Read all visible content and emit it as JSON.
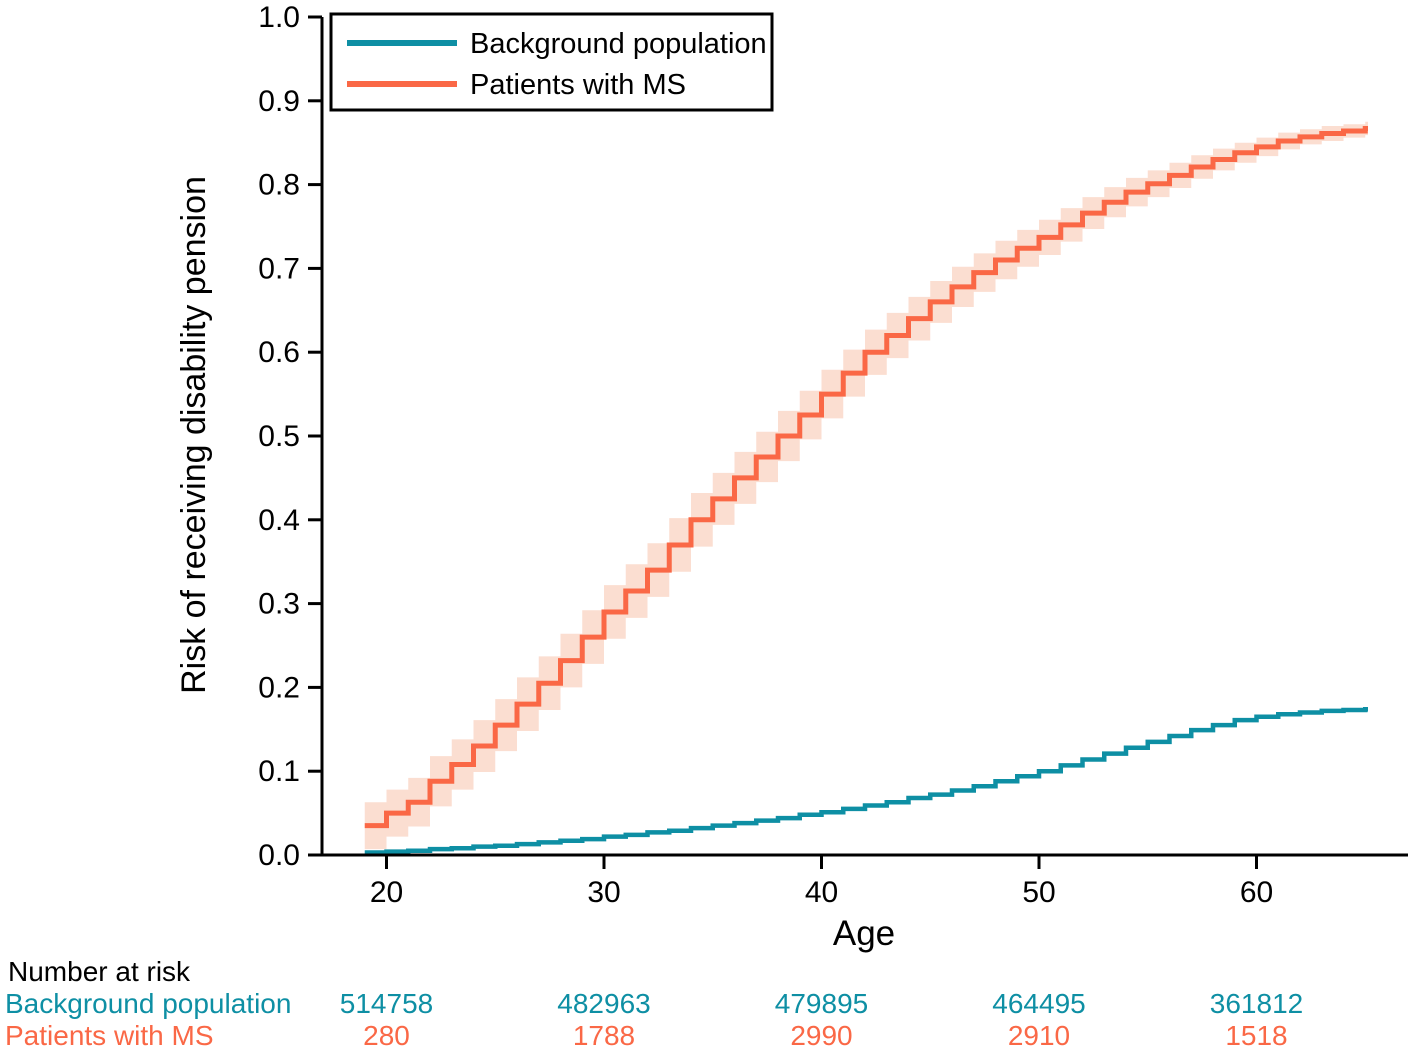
{
  "figure": {
    "background": "#ffffff"
  },
  "colors": {
    "background_population": "#0E8FA4",
    "patients_ms": "#FA6846",
    "ms_ci_band": "#FBDED1",
    "axis": "#000000"
  },
  "legend": {
    "items": [
      {
        "label": "Background population",
        "color": "#0E8FA4"
      },
      {
        "label": "Patients with MS",
        "color": "#FA6846"
      }
    ]
  },
  "axes": {
    "x": {
      "label": "Age",
      "ticks": [
        "20",
        "30",
        "40",
        "50",
        "60"
      ],
      "tick_values": [
        20,
        30,
        40,
        50,
        60
      ]
    },
    "y": {
      "label": "Risk of receiving disability pension",
      "ticks": [
        "0.0",
        "0.1",
        "0.2",
        "0.3",
        "0.4",
        "0.5",
        "0.6",
        "0.7",
        "0.8",
        "0.9",
        "1.0"
      ],
      "tick_values": [
        0.0,
        0.1,
        0.2,
        0.3,
        0.4,
        0.5,
        0.6,
        0.7,
        0.8,
        0.9,
        1.0
      ]
    }
  },
  "risk_table": {
    "title": "Number at risk",
    "ages": [
      20,
      30,
      40,
      50,
      60
    ],
    "rows": [
      {
        "label": "Background population",
        "color": "#0E8FA4",
        "values": [
          "514758",
          "482963",
          "479895",
          "464495",
          "361812"
        ]
      },
      {
        "label": "Patients with MS",
        "color": "#FA6846",
        "values": [
          "280",
          "1788",
          "2990",
          "2910",
          "1518"
        ]
      }
    ]
  },
  "chart_data": {
    "type": "line",
    "subtype": "step-cumulative-incidence",
    "title": "",
    "xlabel": "Age",
    "ylabel": "Risk of receiving disability pension",
    "xlim": [
      17,
      67
    ],
    "ylim": [
      0,
      1
    ],
    "x_ticks": [
      20,
      30,
      40,
      50,
      60
    ],
    "y_ticks": [
      0.0,
      0.1,
      0.2,
      0.3,
      0.4,
      0.5,
      0.6,
      0.7,
      0.8,
      0.9,
      1.0
    ],
    "grid": false,
    "legend_position": "top-left-inside",
    "series": [
      {
        "name": "Background population",
        "color": "#0E8FA4",
        "x": [
          19,
          20,
          21,
          22,
          23,
          24,
          25,
          26,
          27,
          28,
          29,
          30,
          31,
          32,
          33,
          34,
          35,
          36,
          37,
          38,
          39,
          40,
          41,
          42,
          43,
          44,
          45,
          46,
          47,
          48,
          49,
          50,
          51,
          52,
          53,
          54,
          55,
          56,
          57,
          58,
          59,
          60,
          61,
          62,
          63,
          64,
          65
        ],
        "y": [
          0.003,
          0.004,
          0.005,
          0.007,
          0.008,
          0.01,
          0.011,
          0.013,
          0.015,
          0.017,
          0.019,
          0.022,
          0.024,
          0.027,
          0.029,
          0.032,
          0.035,
          0.038,
          0.041,
          0.044,
          0.048,
          0.051,
          0.055,
          0.059,
          0.063,
          0.068,
          0.072,
          0.077,
          0.082,
          0.088,
          0.094,
          0.1,
          0.107,
          0.114,
          0.121,
          0.128,
          0.135,
          0.142,
          0.149,
          0.155,
          0.161,
          0.165,
          0.168,
          0.17,
          0.172,
          0.173,
          0.174
        ]
      },
      {
        "name": "Patients with MS",
        "color": "#FA6846",
        "band_color": "#FBDED1",
        "x": [
          19,
          20,
          21,
          22,
          23,
          24,
          25,
          26,
          27,
          28,
          29,
          30,
          31,
          32,
          33,
          34,
          35,
          36,
          37,
          38,
          39,
          40,
          41,
          42,
          43,
          44,
          45,
          46,
          47,
          48,
          49,
          50,
          51,
          52,
          53,
          54,
          55,
          56,
          57,
          58,
          59,
          60,
          61,
          62,
          63,
          64,
          65
        ],
        "y": [
          0.035,
          0.05,
          0.063,
          0.088,
          0.108,
          0.13,
          0.155,
          0.18,
          0.205,
          0.232,
          0.26,
          0.29,
          0.315,
          0.34,
          0.37,
          0.4,
          0.425,
          0.45,
          0.475,
          0.5,
          0.525,
          0.55,
          0.575,
          0.6,
          0.62,
          0.64,
          0.66,
          0.678,
          0.695,
          0.71,
          0.724,
          0.737,
          0.752,
          0.766,
          0.779,
          0.791,
          0.801,
          0.811,
          0.821,
          0.83,
          0.838,
          0.845,
          0.852,
          0.857,
          0.861,
          0.864,
          0.867
        ],
        "ci_half": [
          0.028,
          0.028,
          0.029,
          0.03,
          0.03,
          0.031,
          0.031,
          0.032,
          0.032,
          0.032,
          0.032,
          0.032,
          0.032,
          0.032,
          0.032,
          0.032,
          0.031,
          0.031,
          0.03,
          0.03,
          0.029,
          0.029,
          0.028,
          0.027,
          0.027,
          0.026,
          0.025,
          0.024,
          0.023,
          0.023,
          0.022,
          0.021,
          0.02,
          0.019,
          0.018,
          0.017,
          0.016,
          0.015,
          0.014,
          0.013,
          0.012,
          0.011,
          0.01,
          0.009,
          0.009,
          0.008,
          0.008
        ]
      }
    ]
  }
}
